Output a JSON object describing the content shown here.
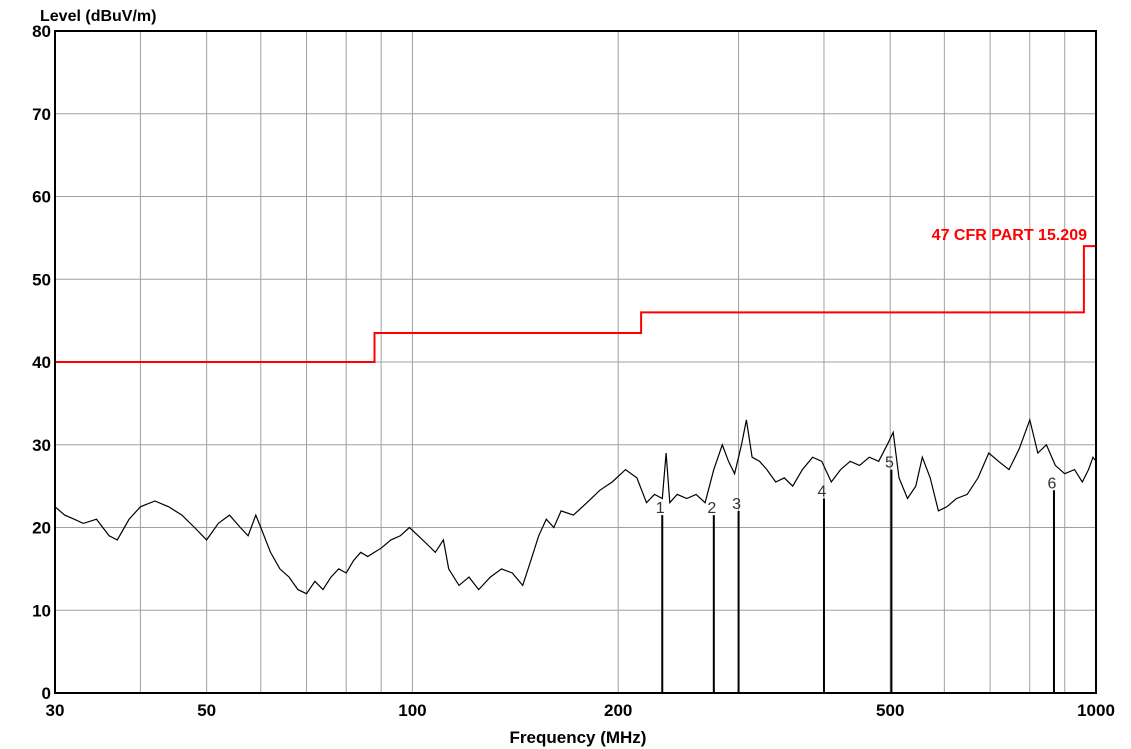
{
  "colors": {
    "limit": "#ff0000",
    "trace": "#000000",
    "grid": "#a0a0a0",
    "frame": "#000000"
  },
  "chart_data": {
    "type": "line",
    "ylabel": "Level (dBuV/m)",
    "xlabel": "Frequency (MHz)",
    "x_scale": "log",
    "xlim": [
      30,
      1000
    ],
    "ylim": [
      0,
      80
    ],
    "grid": true,
    "x_tick_labels": [
      {
        "value": 30,
        "label": "30"
      },
      {
        "value": 50,
        "label": "50"
      },
      {
        "value": 100,
        "label": "100"
      },
      {
        "value": 200,
        "label": "200"
      },
      {
        "value": 500,
        "label": "500"
      },
      {
        "value": 1000,
        "label": "1000"
      }
    ],
    "x_minor_grid": [
      40,
      60,
      70,
      80,
      90,
      300,
      400,
      600,
      700,
      800,
      900
    ],
    "y_ticks": [
      0,
      10,
      20,
      30,
      40,
      50,
      60,
      70,
      80
    ],
    "series": [
      {
        "name": "47 CFR PART 15.209",
        "kind": "limit",
        "points": [
          [
            30,
            40
          ],
          [
            88,
            40
          ],
          [
            88,
            43.5
          ],
          [
            216,
            43.5
          ],
          [
            216,
            46
          ],
          [
            960,
            46
          ],
          [
            960,
            54
          ],
          [
            1000,
            54
          ]
        ]
      },
      {
        "kind": "trace",
        "points": [
          [
            30,
            22.5
          ],
          [
            31,
            21.5
          ],
          [
            32,
            21
          ],
          [
            33,
            20.5
          ],
          [
            34.5,
            21
          ],
          [
            36,
            19
          ],
          [
            37,
            18.5
          ],
          [
            38.5,
            21
          ],
          [
            40,
            22.5
          ],
          [
            42,
            23.2
          ],
          [
            44,
            22.5
          ],
          [
            46,
            21.5
          ],
          [
            48,
            20
          ],
          [
            50,
            18.5
          ],
          [
            52,
            20.5
          ],
          [
            54,
            21.5
          ],
          [
            56,
            20
          ],
          [
            57.5,
            19
          ],
          [
            59,
            21.5
          ],
          [
            60,
            20
          ],
          [
            62,
            17
          ],
          [
            64,
            15
          ],
          [
            66,
            14
          ],
          [
            68,
            12.5
          ],
          [
            70,
            12
          ],
          [
            72,
            13.5
          ],
          [
            74,
            12.5
          ],
          [
            76,
            14
          ],
          [
            78,
            15
          ],
          [
            80,
            14.5
          ],
          [
            82,
            16
          ],
          [
            84,
            17
          ],
          [
            86,
            16.5
          ],
          [
            88,
            17
          ],
          [
            90,
            17.5
          ],
          [
            93,
            18.5
          ],
          [
            96,
            19
          ],
          [
            99,
            20
          ],
          [
            102,
            19
          ],
          [
            105,
            18
          ],
          [
            108,
            17
          ],
          [
            111,
            18.5
          ],
          [
            113,
            15
          ],
          [
            117,
            13
          ],
          [
            121,
            14
          ],
          [
            125,
            12.5
          ],
          [
            130,
            14
          ],
          [
            135,
            15
          ],
          [
            140,
            14.5
          ],
          [
            145,
            13
          ],
          [
            149,
            16
          ],
          [
            153,
            19
          ],
          [
            157,
            21
          ],
          [
            161,
            20
          ],
          [
            165,
            22
          ],
          [
            172,
            21.5
          ],
          [
            180,
            23
          ],
          [
            188,
            24.5
          ],
          [
            196,
            25.5
          ],
          [
            205,
            27
          ],
          [
            213,
            26
          ],
          [
            220,
            23
          ],
          [
            226,
            24
          ],
          [
            232,
            23.5
          ],
          [
            235,
            29
          ],
          [
            238,
            23
          ],
          [
            244,
            24
          ],
          [
            252,
            23.5
          ],
          [
            260,
            24
          ],
          [
            268,
            23
          ],
          [
            276,
            27
          ],
          [
            284,
            30
          ],
          [
            290,
            28
          ],
          [
            296,
            26.5
          ],
          [
            303,
            30
          ],
          [
            308,
            33
          ],
          [
            314,
            28.5
          ],
          [
            322,
            28
          ],
          [
            330,
            27
          ],
          [
            340,
            25.5
          ],
          [
            350,
            26
          ],
          [
            360,
            25
          ],
          [
            372,
            27
          ],
          [
            385,
            28.5
          ],
          [
            397,
            28
          ],
          [
            410,
            25.5
          ],
          [
            423,
            27
          ],
          [
            437,
            28
          ],
          [
            451,
            27.5
          ],
          [
            466,
            28.5
          ],
          [
            481,
            28
          ],
          [
            495,
            30
          ],
          [
            505,
            31.5
          ],
          [
            515,
            26
          ],
          [
            530,
            23.5
          ],
          [
            545,
            25
          ],
          [
            557,
            28.5
          ],
          [
            572,
            26
          ],
          [
            588,
            22
          ],
          [
            605,
            22.5
          ],
          [
            625,
            23.5
          ],
          [
            648,
            24
          ],
          [
            672,
            26
          ],
          [
            697,
            29
          ],
          [
            720,
            28
          ],
          [
            746,
            27
          ],
          [
            772,
            29.5
          ],
          [
            800,
            33
          ],
          [
            822,
            29
          ],
          [
            846,
            30
          ],
          [
            872,
            27.5
          ],
          [
            900,
            26.5
          ],
          [
            930,
            27
          ],
          [
            955,
            25.5
          ],
          [
            975,
            27
          ],
          [
            990,
            28.5
          ],
          [
            1000,
            28
          ]
        ]
      }
    ],
    "markers": [
      {
        "label": "1",
        "freq": 232,
        "level": 21.5
      },
      {
        "label": "2",
        "freq": 276,
        "level": 21.5
      },
      {
        "label": "3",
        "freq": 300,
        "level": 22
      },
      {
        "label": "4",
        "freq": 400,
        "level": 23.5
      },
      {
        "label": "5",
        "freq": 502,
        "level": 27
      },
      {
        "label": "6",
        "freq": 868,
        "level": 24.5
      }
    ]
  }
}
